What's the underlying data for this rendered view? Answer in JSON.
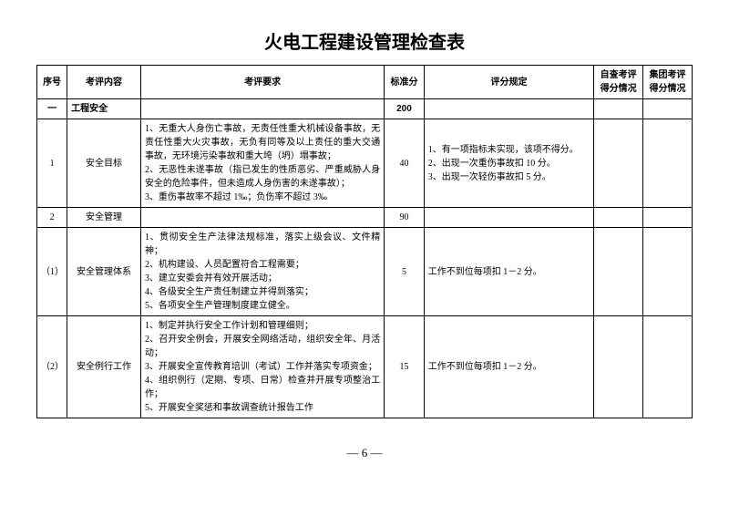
{
  "title": "火电工程建设管理检查表",
  "page_number": "— 6 —",
  "headers": {
    "seq": "序号",
    "content": "考评内容",
    "requirement": "考评要求",
    "standard_score": "标准分",
    "scoring_rule": "评分规定",
    "self_check": "自查考评得分情况",
    "group_check": "集团考评得分情况"
  },
  "section": {
    "seq": "一",
    "name": "工程安全",
    "score": "200"
  },
  "rows": [
    {
      "seq": "1",
      "content": "安全目标",
      "requirements": [
        "1、无重大人身伤亡事故，无责任性重大机械设备事故，无责任性重大火灾事故，无负有同等及以上责任的重大交通事故，无环境污染事故和重大垮（坍）塌事故；",
        "2、无恶性未遂事故（指已发生的性质恶劣、严重威胁人身安全的危险事件，但未造成人身伤害的未遂事故）；",
        "3、重伤事故率不超过 1‰；负伤率不超过 3‰"
      ],
      "score": "40",
      "rules": [
        "1、有一项指标未实现，该项不得分。",
        "",
        "2、出现一次重伤事故扣 10 分。",
        "3、出现一次轻伤事故扣 5 分。"
      ]
    },
    {
      "seq": "2",
      "content": "安全管理",
      "requirements": [],
      "score": "90",
      "rules": []
    },
    {
      "seq": "（1）",
      "content": "安全管理体系",
      "requirements": [
        "1、贯彻安全生产法律法规标准，落实上级会议、文件精神；",
        "2、机构建设、人员配置符合工程需要；",
        "3、建立安委会并有效开展活动；",
        "4、各级安全生产责任制建立并得到落实；",
        "5、各项安全生产管理制度建立健全。"
      ],
      "score": "5",
      "rules": [
        "工作不到位每项扣 1－2 分。"
      ]
    },
    {
      "seq": "（2）",
      "content": "安全例行工作",
      "requirements": [
        "1、制定并执行安全工作计划和管理细则；",
        "2、召开安全例会，开展安全网络活动，组织安全年、月活动；",
        "3、开展安全宣传教育培训（考试）工作并落实专项资金；",
        "4、组织例行（定期、专项、日常）检查并开展专项整治工作；",
        "5、开展安全奖惩和事故调查统计报告工作"
      ],
      "score": "15",
      "rules": [
        "工作不到位每项扣 1－2 分。"
      ]
    }
  ]
}
